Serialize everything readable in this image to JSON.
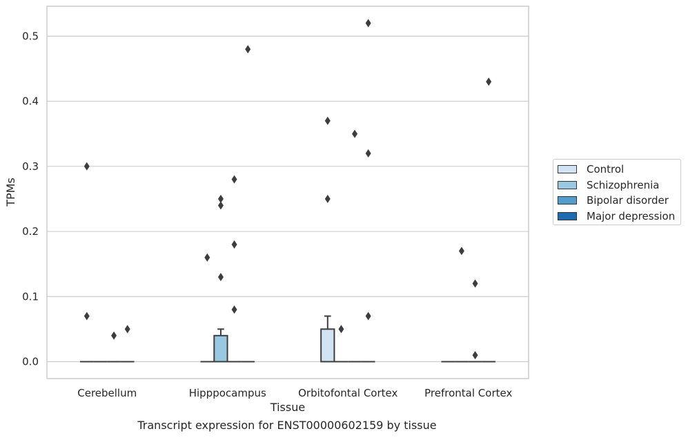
{
  "chart_data": {
    "type": "box",
    "title": "",
    "xlabel": "Tissue",
    "ylabel": "TPMs",
    "ylim": [
      -0.026,
      0.546
    ],
    "yticks": [
      "0.0",
      "0.1",
      "0.2",
      "0.3",
      "0.4",
      "0.5"
    ],
    "ytick_values": [
      0.0,
      0.1,
      0.2,
      0.3,
      0.4,
      0.5
    ],
    "grid": "horizontal",
    "legend_position": "right",
    "categories": [
      "Cerebellum",
      "Hipppocampus",
      "Orbitofontal Cortex",
      "Prefrontal Cortex"
    ],
    "series": [
      {
        "name": "Control",
        "color": "#d2e3f3",
        "boxes": [
          {
            "q1": 0,
            "median": 0,
            "q3": 0,
            "whisker_low": 0,
            "whisker_high": 0,
            "outliers": [
              0.3,
              0.07
            ]
          },
          {
            "q1": 0,
            "median": 0,
            "q3": 0,
            "whisker_low": 0,
            "whisker_high": 0,
            "outliers": [
              0.16
            ]
          },
          {
            "q1": 0,
            "median": 0,
            "q3": 0.05,
            "whisker_low": 0,
            "whisker_high": 0.07,
            "outliers": [
              0.37,
              0.25
            ]
          },
          {
            "q1": 0,
            "median": 0,
            "q3": 0,
            "whisker_low": 0,
            "whisker_high": 0,
            "outliers": []
          }
        ]
      },
      {
        "name": "Schizophrenia",
        "color": "#9ac8e0",
        "boxes": [
          {
            "q1": 0,
            "median": 0,
            "q3": 0,
            "whisker_low": 0,
            "whisker_high": 0,
            "outliers": []
          },
          {
            "q1": 0,
            "median": 0,
            "q3": 0.04,
            "whisker_low": 0,
            "whisker_high": 0.05,
            "outliers": [
              0.25,
              0.24,
              0.13
            ]
          },
          {
            "q1": 0,
            "median": 0,
            "q3": 0,
            "whisker_low": 0,
            "whisker_high": 0,
            "outliers": [
              0.05
            ]
          },
          {
            "q1": 0,
            "median": 0,
            "q3": 0,
            "whisker_low": 0,
            "whisker_high": 0,
            "outliers": [
              0.17
            ]
          }
        ]
      },
      {
        "name": "Bipolar disorder",
        "color": "#529dcc",
        "boxes": [
          {
            "q1": 0,
            "median": 0,
            "q3": 0,
            "whisker_low": 0,
            "whisker_high": 0,
            "outliers": [
              0.04
            ]
          },
          {
            "q1": 0,
            "median": 0,
            "q3": 0,
            "whisker_low": 0,
            "whisker_high": 0,
            "outliers": [
              0.28,
              0.18,
              0.08
            ]
          },
          {
            "q1": 0,
            "median": 0,
            "q3": 0,
            "whisker_low": 0,
            "whisker_high": 0,
            "outliers": [
              0.35
            ]
          },
          {
            "q1": 0,
            "median": 0,
            "q3": 0,
            "whisker_low": 0,
            "whisker_high": 0,
            "outliers": [
              0.12,
              0.01
            ]
          }
        ]
      },
      {
        "name": "Major depression",
        "color": "#1c6aaf",
        "boxes": [
          {
            "q1": 0,
            "median": 0,
            "q3": 0,
            "whisker_low": 0,
            "whisker_high": 0,
            "outliers": [
              0.05
            ]
          },
          {
            "q1": 0,
            "median": 0,
            "q3": 0,
            "whisker_low": 0,
            "whisker_high": 0,
            "outliers": [
              0.48
            ]
          },
          {
            "q1": 0,
            "median": 0,
            "q3": 0,
            "whisker_low": 0,
            "whisker_high": 0,
            "outliers": [
              0.52,
              0.32,
              0.07
            ]
          },
          {
            "q1": 0,
            "median": 0,
            "q3": 0,
            "whisker_low": 0,
            "whisker_high": 0,
            "outliers": [
              0.43
            ]
          }
        ]
      }
    ]
  },
  "caption": "Transcript expression for ENST00000602159 by tissue"
}
